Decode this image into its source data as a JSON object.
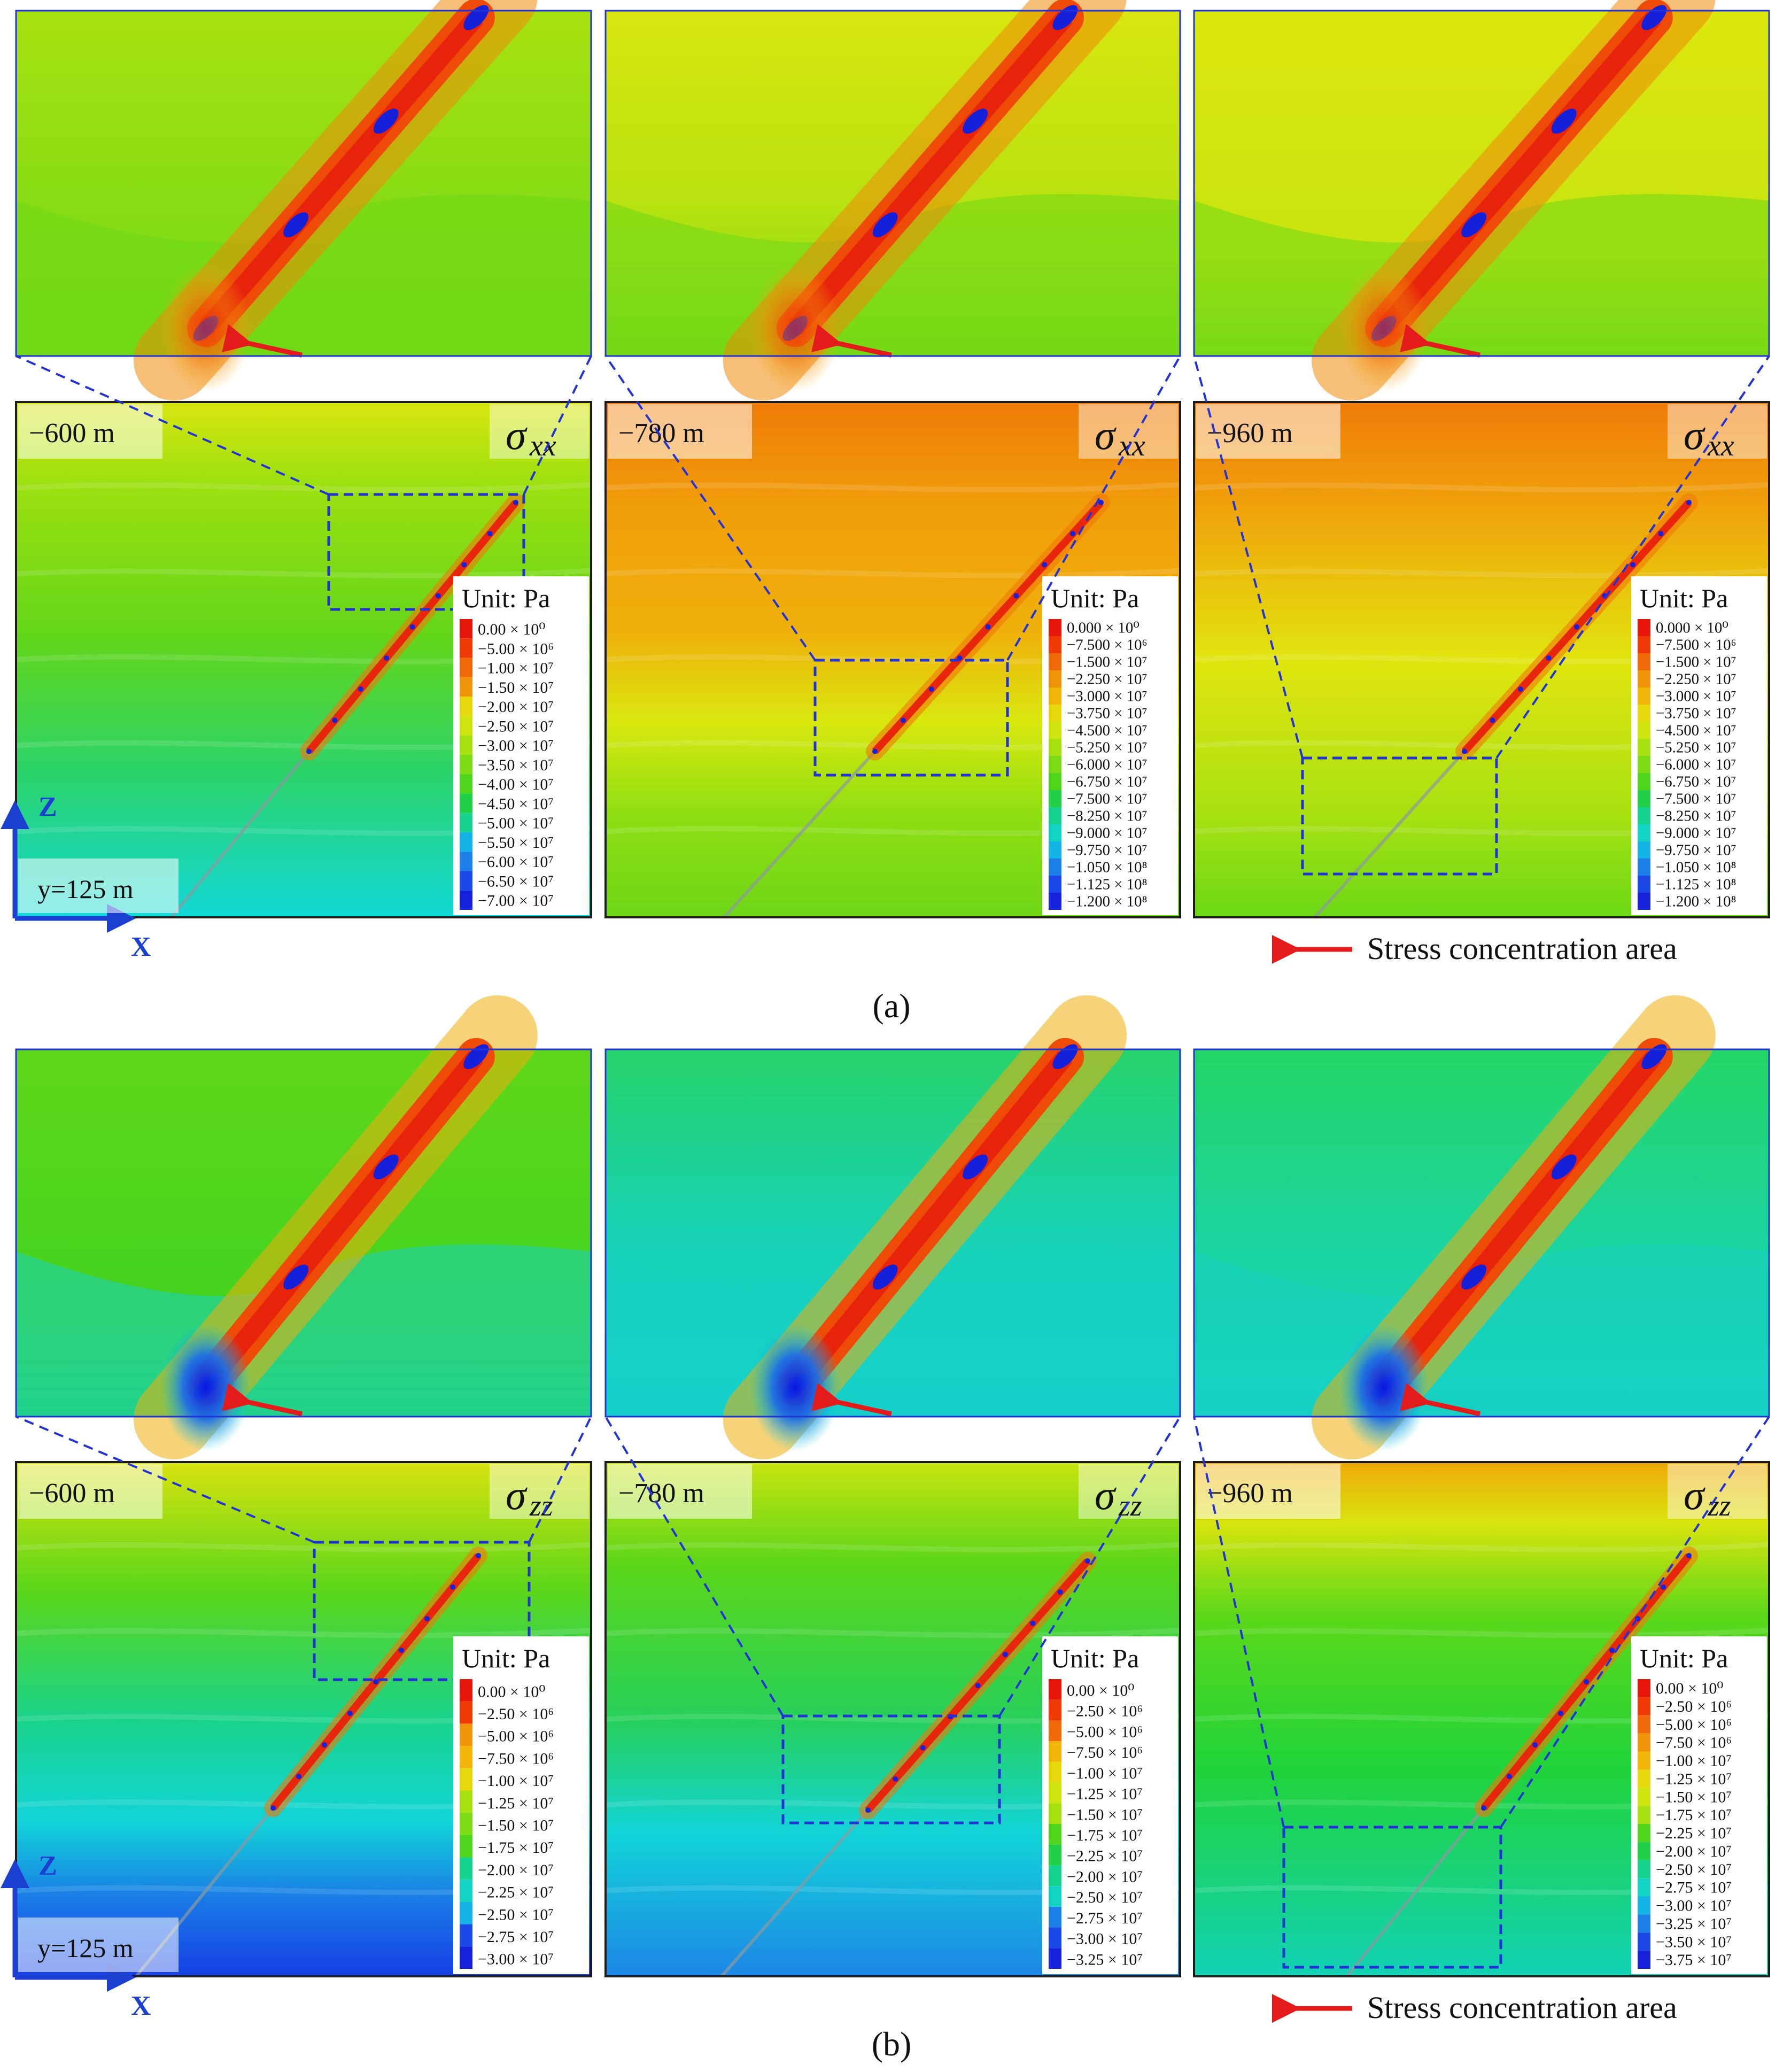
{
  "colors": {
    "frame": "#1d1a17",
    "zoom_line": "#2133d6",
    "axis": "#1b3fd1",
    "arrow": "#e31b1b"
  },
  "figure_a": {
    "panel_label": "(a)",
    "stress_symbol": "σ",
    "stress_subscript": "xx",
    "axes": {
      "z": "Z",
      "x": "X",
      "section": "y=125 m"
    },
    "legend_note": "Stress concentration area",
    "panels": [
      {
        "depth": "−600 m",
        "unit": "Unit: Pa",
        "levels": [
          "0.00 × 10⁰",
          "−5.00 × 10⁶",
          "−1.00 × 10⁷",
          "−1.50 × 10⁷",
          "−2.00 × 10⁷",
          "−2.50 × 10⁷",
          "−3.00 × 10⁷",
          "−3.50 × 10⁷",
          "−4.00 × 10⁷",
          "−4.50 × 10⁷",
          "−5.00 × 10⁷",
          "−5.50 × 10⁷",
          "−6.00 × 10⁷",
          "−6.50 × 10⁷",
          "−7.00 × 10⁷"
        ]
      },
      {
        "depth": "−780 m",
        "unit": "Unit: Pa",
        "levels": [
          "0.000 × 10⁰",
          "−7.500 × 10⁶",
          "−1.500 × 10⁷",
          "−2.250 × 10⁷",
          "−3.000 × 10⁷",
          "−3.750 × 10⁷",
          "−4.500 × 10⁷",
          "−5.250 × 10⁷",
          "−6.000 × 10⁷",
          "−6.750 × 10⁷",
          "−7.500 × 10⁷",
          "−8.250 × 10⁷",
          "−9.000 × 10⁷",
          "−9.750 × 10⁷",
          "−1.050 × 10⁸",
          "−1.125 × 10⁸",
          "−1.200 × 10⁸"
        ]
      },
      {
        "depth": "−960 m",
        "unit": "Unit: Pa",
        "levels": [
          "0.000 × 10⁰",
          "−7.500 × 10⁶",
          "−1.500 × 10⁷",
          "−2.250 × 10⁷",
          "−3.000 × 10⁷",
          "−3.750 × 10⁷",
          "−4.500 × 10⁷",
          "−5.250 × 10⁷",
          "−6.000 × 10⁷",
          "−6.750 × 10⁷",
          "−7.500 × 10⁷",
          "−8.250 × 10⁷",
          "−9.000 × 10⁷",
          "−9.750 × 10⁷",
          "−1.050 × 10⁸",
          "−1.125 × 10⁸",
          "−1.200 × 10⁸"
        ]
      }
    ]
  },
  "figure_b": {
    "panel_label": "(b)",
    "stress_symbol": "σ",
    "stress_subscript": "zz",
    "axes": {
      "z": "Z",
      "x": "X",
      "section": "y=125 m"
    },
    "legend_note": "Stress concentration area",
    "panels": [
      {
        "depth": "−600 m",
        "unit": "Unit: Pa",
        "levels": [
          "0.00 × 10⁰",
          "−2.50 × 10⁶",
          "−5.00 × 10⁶",
          "−7.50 × 10⁶",
          "−1.00 × 10⁷",
          "−1.25 × 10⁷",
          "−1.50 × 10⁷",
          "−1.75 × 10⁷",
          "−2.00 × 10⁷",
          "−2.25 × 10⁷",
          "−2.50 × 10⁷",
          "−2.75 × 10⁷",
          "−3.00 × 10⁷"
        ]
      },
      {
        "depth": "−780 m",
        "unit": "Unit: Pa",
        "levels": [
          "0.00 × 10⁰",
          "−2.50 × 10⁶",
          "−5.00 × 10⁶",
          "−7.50 × 10⁶",
          "−1.00 × 10⁷",
          "−1.25 × 10⁷",
          "−1.50 × 10⁷",
          "−1.75 × 10⁷",
          "−2.25 × 10⁷",
          "−2.00 × 10⁷",
          "−2.50 × 10⁷",
          "−2.75 × 10⁷",
          "−3.00 × 10⁷",
          "−3.25 × 10⁷"
        ]
      },
      {
        "depth": "−960 m",
        "unit": "Unit: Pa",
        "levels": [
          "0.00 × 10⁰",
          "−2.50 × 10⁶",
          "−5.00 × 10⁶",
          "−7.50 × 10⁶",
          "−1.00 × 10⁷",
          "−1.25 × 10⁷",
          "−1.50 × 10⁷",
          "−1.75 × 10⁷",
          "−2.25 × 10⁷",
          "−2.00 × 10⁷",
          "−2.50 × 10⁷",
          "−2.75 × 10⁷",
          "−3.00 × 10⁷",
          "−3.25 × 10⁷",
          "−3.50 × 10⁷",
          "−3.75 × 10⁷"
        ]
      }
    ]
  }
}
